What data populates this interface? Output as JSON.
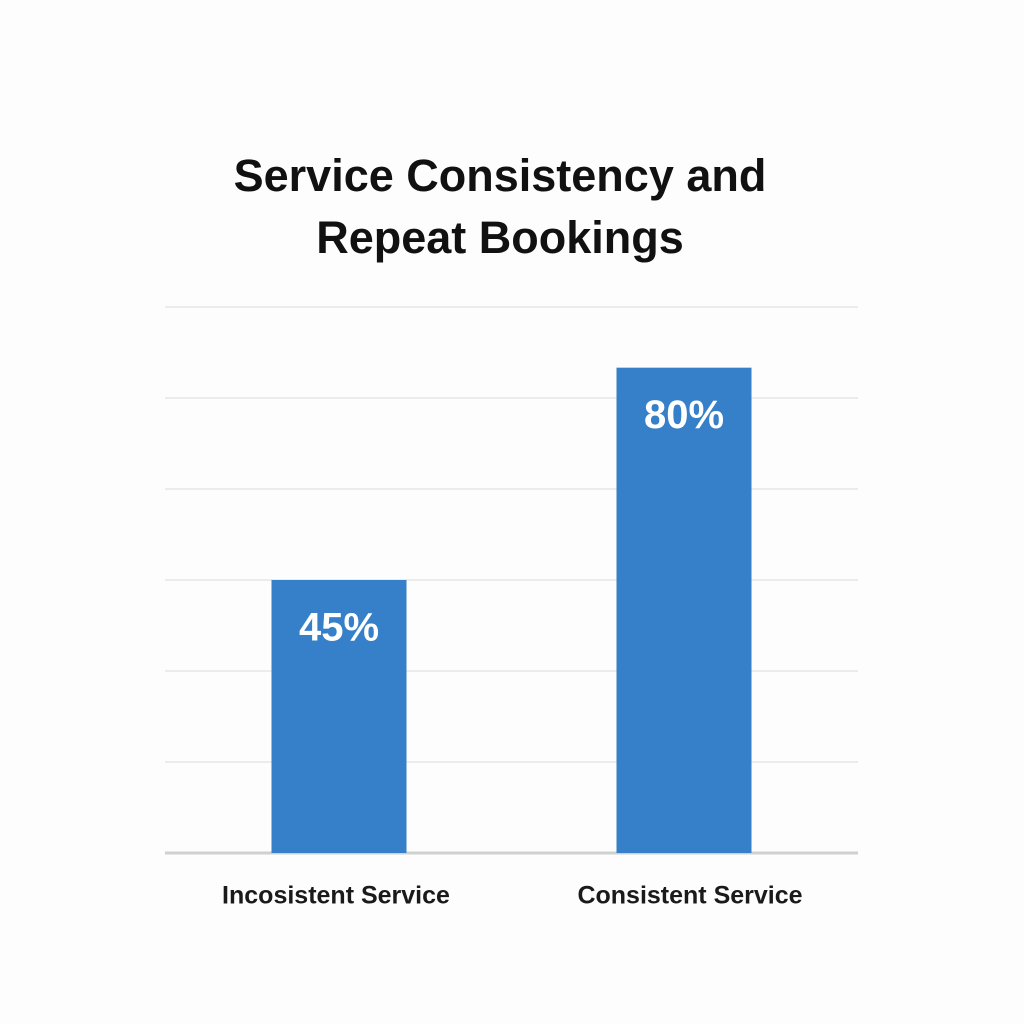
{
  "chart_data": {
    "type": "bar",
    "title": "Service Consistency and Repeat Bookings",
    "categories": [
      "Incosistent Service",
      "Consistent Service"
    ],
    "values": [
      45,
      80
    ],
    "value_labels": [
      "45%",
      "80%"
    ],
    "color": "#3580c8",
    "ylim": [
      0,
      90
    ],
    "yticks": [
      0,
      15,
      30,
      45,
      60,
      75,
      90
    ],
    "grid": true
  }
}
